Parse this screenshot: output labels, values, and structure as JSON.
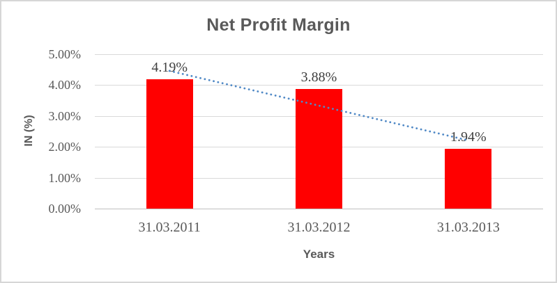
{
  "window": {
    "background": "#FFFFFF",
    "border_color": "#D6D6D6"
  },
  "chart_data": {
    "type": "bar",
    "title": "Net Profit Margin",
    "xlabel": "Years",
    "ylabel": "IN (%)",
    "categories": [
      "31.03.2011",
      "31.03.2012",
      "31.03.2013"
    ],
    "values": [
      4.19,
      3.88,
      1.94
    ],
    "data_labels": [
      "4.19%",
      "3.88%",
      "1.94%"
    ],
    "ylim": [
      0,
      5
    ],
    "yticks": [
      {
        "value": 0,
        "label": "0.00%"
      },
      {
        "value": 1,
        "label": "1.00%"
      },
      {
        "value": 2,
        "label": "2.00%"
      },
      {
        "value": 3,
        "label": "3.00%"
      },
      {
        "value": 4,
        "label": "4.00%"
      },
      {
        "value": 5,
        "label": "5.00%"
      }
    ],
    "grid": true,
    "legend": "none",
    "trendline": {
      "type": "linear",
      "style": "dotted",
      "start_value": 4.46,
      "end_value": 2.21
    },
    "colors": {
      "bar": "#FF0000",
      "trendline": "#5089C6",
      "title_text": "#595959",
      "axis_text": "#595959",
      "data_label_text": "#3F3F3F",
      "gridline": "#D9D9D9",
      "axis_line": "#BFBFBF"
    }
  }
}
